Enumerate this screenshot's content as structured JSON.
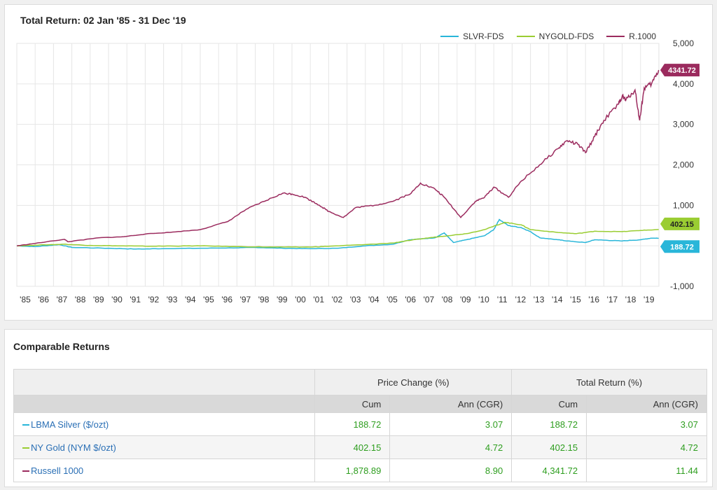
{
  "chart_data": {
    "type": "line",
    "title": "Total Return: 02 Jan '85 - 31 Dec '19",
    "ylim": [
      -1000,
      5000
    ],
    "y_ticks": [
      "5,000",
      "4,000",
      "3,000",
      "2,000",
      "1,000",
      "0",
      "-1,000"
    ],
    "y_tick_values": [
      5000,
      4000,
      3000,
      2000,
      1000,
      0,
      -1000
    ],
    "x_ticks": [
      "'85",
      "'86",
      "'87",
      "'88",
      "'89",
      "'90",
      "'91",
      "'92",
      "'93",
      "'94",
      "'95",
      "'96",
      "'97",
      "'98",
      "'99",
      "'00",
      "'01",
      "'02",
      "'03",
      "'04",
      "'05",
      "'06",
      "'07",
      "'08",
      "'09",
      "'10",
      "'11",
      "'12",
      "'13",
      "'14",
      "'15",
      "'16",
      "'17",
      "'18",
      "'19"
    ],
    "xlim": [
      1985.0,
      2020.0
    ],
    "grid": true,
    "legend_position": "top-right",
    "series": [
      {
        "name": "SLVR-FDS",
        "color": "#29b6d9",
        "end_label": "188.72",
        "x": [
          1985.0,
          1986.0,
          1987.3,
          1988.0,
          1990.0,
          1991.5,
          1993.0,
          1995.0,
          1997.0,
          1998.0,
          1999.5,
          2001.0,
          2002.5,
          2004.0,
          2005.5,
          2006.4,
          2007.0,
          2007.8,
          2008.3,
          2008.8,
          2009.5,
          2010.5,
          2011.0,
          2011.3,
          2011.8,
          2012.5,
          2013.0,
          2013.5,
          2014.5,
          2015.0,
          2016.0,
          2016.5,
          2017.0,
          2018.0,
          2019.0,
          2019.6,
          2019.99
        ],
        "y": [
          0,
          -20,
          30,
          -40,
          -60,
          -80,
          -70,
          -60,
          -50,
          -40,
          -60,
          -70,
          -60,
          0,
          40,
          150,
          170,
          200,
          320,
          80,
          150,
          250,
          400,
          650,
          500,
          450,
          350,
          200,
          150,
          120,
          80,
          150,
          140,
          120,
          150,
          190,
          188.72
        ]
      },
      {
        "name": "NYGOLD-FDS",
        "color": "#9acd32",
        "end_label": "402.15",
        "x": [
          1985.0,
          1986.0,
          1987.5,
          1989.0,
          1990.5,
          1992.0,
          1993.5,
          1995.0,
          1997.0,
          1999.0,
          2001.0,
          2002.0,
          2004.0,
          2005.5,
          2006.5,
          2007.5,
          2008.5,
          2009.5,
          2010.5,
          2011.6,
          2012.5,
          2013.0,
          2014.5,
          2015.5,
          2016.5,
          2018.0,
          2019.0,
          2019.99
        ],
        "y": [
          0,
          15,
          40,
          10,
          0,
          -10,
          -5,
          0,
          -20,
          -30,
          -30,
          -10,
          30,
          70,
          140,
          200,
          250,
          300,
          400,
          580,
          520,
          400,
          330,
          300,
          360,
          350,
          380,
          402.15
        ]
      },
      {
        "name": "R.1000",
        "color": "#9b2b5e",
        "end_label": "4341.72",
        "x": [
          1985.0,
          1986.0,
          1987.6,
          1987.8,
          1989.5,
          1990.7,
          1992.0,
          1993.5,
          1995.0,
          1996.5,
          1997.5,
          1998.5,
          1999.5,
          2000.0,
          2000.7,
          2001.5,
          2002.0,
          2002.8,
          2003.5,
          2004.5,
          2005.5,
          2006.5,
          2007.0,
          2007.8,
          2008.3,
          2009.2,
          2010.0,
          2010.5,
          2011.0,
          2011.8,
          2012.5,
          2013.5,
          2014.5,
          2015.0,
          2015.6,
          2016.0,
          2016.5,
          2017.0,
          2017.8,
          2018.0,
          2018.2,
          2018.7,
          2018.95,
          2019.2,
          2019.6,
          2019.99
        ],
        "y": [
          0,
          60,
          160,
          100,
          200,
          220,
          290,
          340,
          400,
          600,
          900,
          1100,
          1300,
          1280,
          1200,
          1000,
          850,
          700,
          950,
          1000,
          1100,
          1300,
          1550,
          1400,
          1200,
          700,
          1100,
          1200,
          1450,
          1200,
          1600,
          2000,
          2400,
          2600,
          2500,
          2300,
          2700,
          3100,
          3500,
          3700,
          3600,
          3850,
          3100,
          3900,
          4000,
          4341.72
        ]
      }
    ]
  },
  "returns": {
    "title": "Comparable Returns",
    "group_headers": [
      "Price Change (%)",
      "Total Return (%)"
    ],
    "sub_headers": [
      "Cum",
      "Ann (CGR)",
      "Cum",
      "Ann (CGR)"
    ],
    "rows": [
      {
        "name": "LBMA Silver ($/ozt)",
        "color": "#29b6d9",
        "values": [
          "188.72",
          "3.07",
          "188.72",
          "3.07"
        ]
      },
      {
        "name": "NY Gold (NYM $/ozt)",
        "color": "#9acd32",
        "values": [
          "402.15",
          "4.72",
          "402.15",
          "4.72"
        ]
      },
      {
        "name": "Russell 1000",
        "color": "#9b2b5e",
        "values": [
          "1,878.89",
          "8.90",
          "4,341.72",
          "11.44"
        ]
      }
    ]
  }
}
